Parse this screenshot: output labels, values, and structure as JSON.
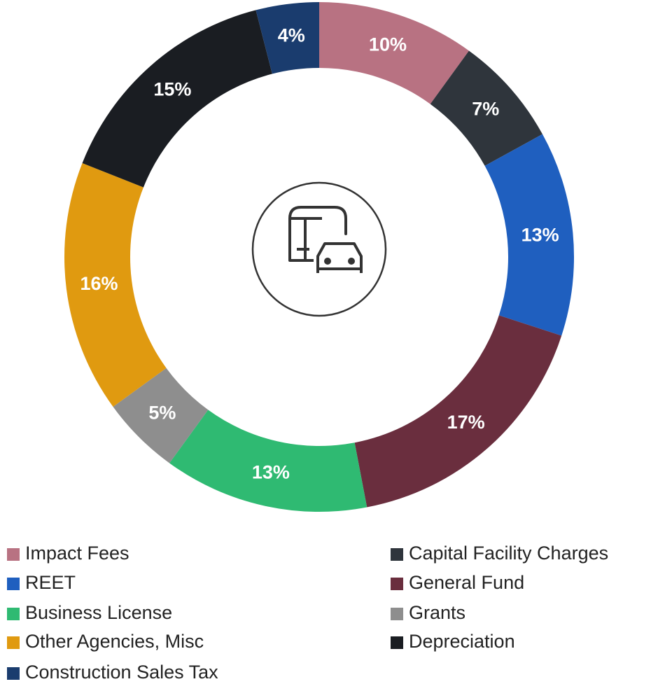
{
  "chart_data": {
    "type": "donut",
    "categories": [
      "Impact Fees",
      "Capital Facility Charges",
      "REET",
      "General Fund",
      "Business License",
      "Grants",
      "Other Agencies, Misc",
      "Depreciation",
      "Construction Sales Tax"
    ],
    "values": [
      10,
      7,
      13,
      17,
      13,
      5,
      16,
      15,
      4
    ],
    "value_labels": [
      "10%",
      "7%",
      "13%",
      "17%",
      "13%",
      "5%",
      "16%",
      "15%",
      "4%"
    ],
    "colors": [
      "#b87282",
      "#2f353c",
      "#1f5fbf",
      "#6a2e3e",
      "#2fba72",
      "#8e8e8e",
      "#e09a10",
      "#1a1d22",
      "#1a3c6e"
    ]
  }
}
